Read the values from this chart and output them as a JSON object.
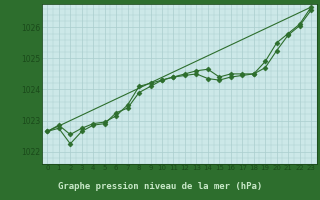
{
  "background_color": "#2d6e2d",
  "plot_bg_color": "#cce8e8",
  "grid_color": "#aacece",
  "line_color": "#2d6e2d",
  "xlabel": "Graphe pression niveau de la mer (hPa)",
  "xlim": [
    -0.5,
    23.5
  ],
  "ylim": [
    1021.6,
    1026.75
  ],
  "yticks": [
    1022,
    1023,
    1024,
    1025,
    1026
  ],
  "xticks": [
    0,
    1,
    2,
    3,
    4,
    5,
    6,
    7,
    8,
    9,
    10,
    11,
    12,
    13,
    14,
    15,
    16,
    17,
    18,
    19,
    20,
    21,
    22,
    23
  ],
  "series1_x": [
    0,
    1,
    2,
    3,
    4,
    5,
    6,
    7,
    8,
    9,
    10,
    11,
    12,
    13,
    14,
    15,
    16,
    17,
    18,
    19,
    20,
    21,
    22,
    23
  ],
  "series1_y": [
    1022.65,
    1022.85,
    1022.55,
    1022.75,
    1022.9,
    1022.95,
    1023.15,
    1023.5,
    1024.1,
    1024.2,
    1024.3,
    1024.4,
    1024.5,
    1024.6,
    1024.65,
    1024.4,
    1024.5,
    1024.5,
    1024.5,
    1024.9,
    1025.5,
    1025.8,
    1026.1,
    1026.65
  ],
  "series2_x": [
    0,
    1,
    2,
    3,
    4,
    5,
    6,
    7,
    8,
    9,
    10,
    11,
    12,
    13,
    14,
    15,
    16,
    17,
    18,
    19,
    20,
    21,
    22,
    23
  ],
  "series2_y": [
    1022.65,
    1022.75,
    1022.25,
    1022.65,
    1022.85,
    1022.9,
    1023.25,
    1023.4,
    1023.9,
    1024.1,
    1024.3,
    1024.4,
    1024.45,
    1024.5,
    1024.35,
    1024.3,
    1024.4,
    1024.45,
    1024.5,
    1024.7,
    1025.25,
    1025.75,
    1026.05,
    1026.55
  ],
  "trend_x": [
    0,
    23
  ],
  "trend_y": [
    1022.65,
    1026.65
  ],
  "font_color": "#1a4a1a",
  "xlabel_bg": "#2d6e2d",
  "xlabel_text_color": "#c8e8c8",
  "marker": "D",
  "marker_size": 2.5,
  "line_width": 0.8
}
